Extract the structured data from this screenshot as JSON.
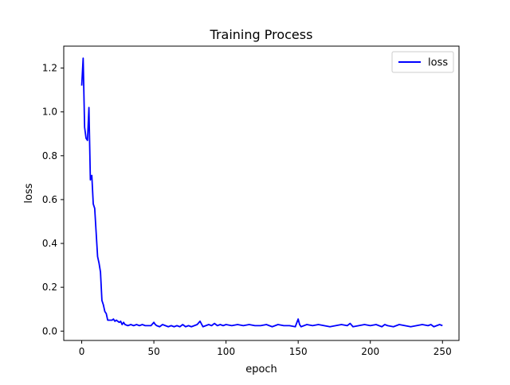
{
  "chart_data": {
    "type": "line",
    "title": "Training Process",
    "xlabel": "epoch",
    "ylabel": "loss",
    "xlim": [
      -12.45,
      261.45
    ],
    "ylim": [
      -0.0426,
      1.3
    ],
    "x_ticks": [
      0,
      50,
      100,
      150,
      200,
      250
    ],
    "y_ticks": [
      0.0,
      0.2,
      0.4,
      0.6,
      0.8,
      1.0,
      1.2
    ],
    "x_tick_labels": [
      "0",
      "50",
      "100",
      "150",
      "200",
      "250"
    ],
    "y_tick_labels": [
      "0.0",
      "0.2",
      "0.4",
      "0.6",
      "0.8",
      "1.0",
      "1.2"
    ],
    "legend_position": "top-right",
    "grid": false,
    "series": [
      {
        "name": "loss",
        "color": "#0000ff",
        "x": [
          0,
          1,
          2,
          3,
          4,
          5,
          6,
          7,
          8,
          9,
          10,
          11,
          12,
          13,
          14,
          15,
          16,
          17,
          18,
          19,
          20,
          21,
          22,
          23,
          24,
          25,
          26,
          27,
          28,
          29,
          30,
          32,
          34,
          36,
          38,
          40,
          42,
          44,
          46,
          48,
          50,
          51,
          52,
          54,
          56,
          58,
          60,
          62,
          64,
          66,
          68,
          70,
          72,
          74,
          76,
          78,
          80,
          82,
          84,
          86,
          88,
          90,
          92,
          94,
          96,
          98,
          100,
          104,
          108,
          112,
          116,
          120,
          124,
          128,
          132,
          136,
          140,
          144,
          148,
          150,
          151,
          152,
          156,
          160,
          164,
          168,
          172,
          176,
          180,
          184,
          186,
          188,
          192,
          196,
          200,
          204,
          208,
          210,
          212,
          216,
          220,
          224,
          228,
          232,
          236,
          240,
          242,
          244,
          248,
          250
        ],
        "y": [
          1.12,
          1.245,
          0.93,
          0.88,
          0.87,
          1.02,
          0.69,
          0.71,
          0.58,
          0.56,
          0.45,
          0.34,
          0.31,
          0.27,
          0.14,
          0.12,
          0.09,
          0.08,
          0.05,
          0.05,
          0.05,
          0.05,
          0.055,
          0.045,
          0.05,
          0.045,
          0.04,
          0.045,
          0.03,
          0.04,
          0.03,
          0.025,
          0.03,
          0.025,
          0.03,
          0.025,
          0.03,
          0.025,
          0.025,
          0.025,
          0.04,
          0.03,
          0.025,
          0.02,
          0.03,
          0.025,
          0.02,
          0.025,
          0.02,
          0.025,
          0.02,
          0.03,
          0.02,
          0.025,
          0.02,
          0.025,
          0.03,
          0.045,
          0.02,
          0.025,
          0.03,
          0.025,
          0.035,
          0.025,
          0.03,
          0.025,
          0.03,
          0.025,
          0.03,
          0.025,
          0.03,
          0.025,
          0.025,
          0.03,
          0.02,
          0.03,
          0.025,
          0.025,
          0.02,
          0.055,
          0.03,
          0.02,
          0.03,
          0.025,
          0.03,
          0.025,
          0.02,
          0.025,
          0.03,
          0.025,
          0.035,
          0.02,
          0.025,
          0.03,
          0.025,
          0.03,
          0.02,
          0.03,
          0.025,
          0.02,
          0.03,
          0.025,
          0.02,
          0.025,
          0.03,
          0.025,
          0.03,
          0.02,
          0.03,
          0.025
        ]
      }
    ]
  }
}
